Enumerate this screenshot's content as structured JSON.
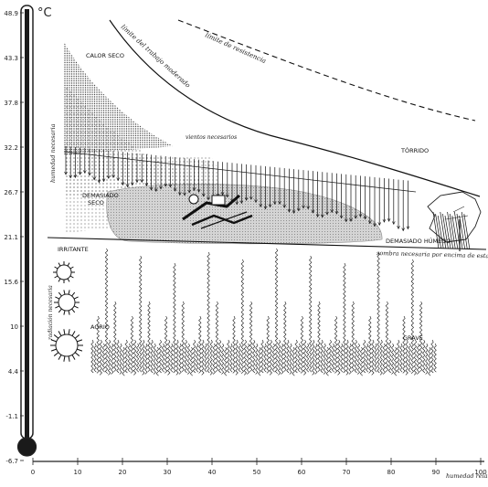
{
  "chart_data": {
    "type": "diagram",
    "unit": "°C",
    "yticks": [
      "48.9",
      "43.3",
      "37.8",
      "32.2",
      "26.7",
      "21.1",
      "15.6",
      "10",
      "4.4",
      "-1.1",
      "-6.7"
    ],
    "xticks": [
      "0",
      "10",
      "20",
      "30",
      "40",
      "50",
      "60",
      "70",
      "80",
      "90",
      "100"
    ],
    "xlabel": "humedad relativa %",
    "ylabel": "humedad necesaria",
    "ylabel2": "radiación necesaria",
    "zone_labels": {
      "calor_seco": "CALOR SECO",
      "torrido": "TÓRRIDO",
      "demasiado_seco": [
        "DEMASIADO",
        "SECO"
      ],
      "demasiado_humedo": "DEMASIADO HÚMEDO",
      "irritante": "IRRITANTE",
      "agrio": "AGRIO",
      "grave": "GRAVE"
    },
    "curve_labels": {
      "limite_trabajo": "límite del trabajo moderado",
      "limite_resistencia": "límite de resistencia",
      "vientos": "vientos necesarios",
      "sombra": "sombra necesaria por encima de esta línea"
    }
  }
}
